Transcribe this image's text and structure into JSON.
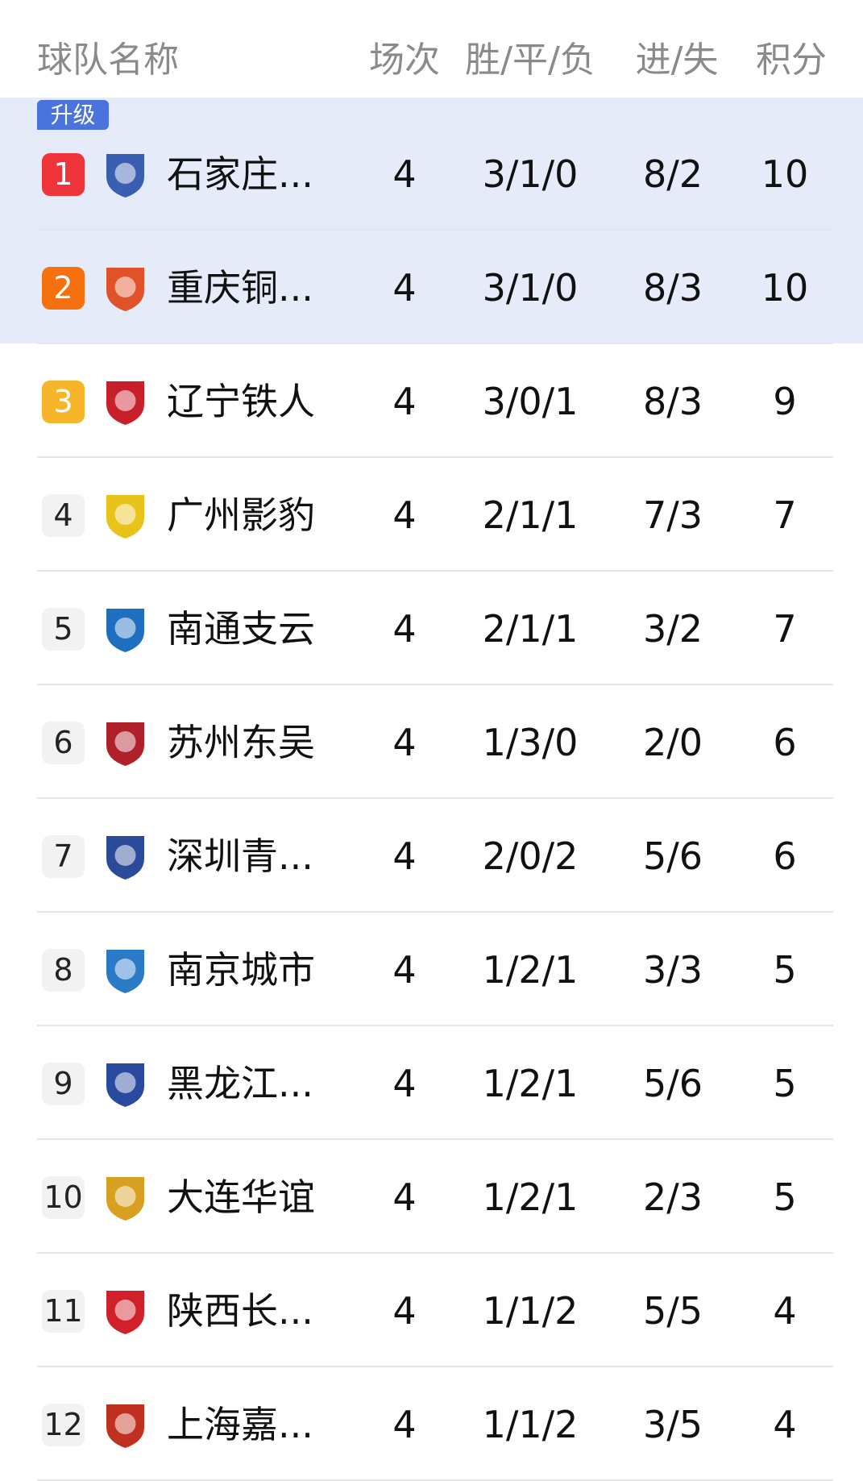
{
  "header": {
    "team": "球队名称",
    "played": "场次",
    "wdl": "胜/平/负",
    "goals": "进/失",
    "points": "积分"
  },
  "promotion_label": "升级",
  "colors": {
    "rank1": "#f0353a",
    "rank2": "#f5700f",
    "rank3": "#f7b52a",
    "promo_bg": "#e5ebf8",
    "promo_tag": "#4a73de"
  },
  "rows": [
    {
      "rank": "1",
      "name": "石家庄...",
      "played": "4",
      "wdl": "3/1/0",
      "goals": "8/2",
      "points": "10",
      "logo": "shijiazhuang-crest",
      "logo_color": "#3a5fb0"
    },
    {
      "rank": "2",
      "name": "重庆铜...",
      "played": "4",
      "wdl": "3/1/0",
      "goals": "8/3",
      "points": "10",
      "logo": "chongqing-crest",
      "logo_color": "#e0522a"
    },
    {
      "rank": "3",
      "name": "辽宁铁人",
      "played": "4",
      "wdl": "3/0/1",
      "goals": "8/3",
      "points": "9",
      "logo": "liaoning-tieren-crest",
      "logo_color": "#c8202a"
    },
    {
      "rank": "4",
      "name": "广州影豹",
      "played": "4",
      "wdl": "2/1/1",
      "goals": "7/3",
      "points": "7",
      "logo": "guangzhou-crest",
      "logo_color": "#e8c31a"
    },
    {
      "rank": "5",
      "name": "南通支云",
      "played": "4",
      "wdl": "2/1/1",
      "goals": "3/2",
      "points": "7",
      "logo": "nantong-crest",
      "logo_color": "#1f6fc0"
    },
    {
      "rank": "6",
      "name": "苏州东吴",
      "played": "4",
      "wdl": "1/3/0",
      "goals": "2/0",
      "points": "6",
      "logo": "suzhou-crest",
      "logo_color": "#b0202a"
    },
    {
      "rank": "7",
      "name": "深圳青...",
      "played": "4",
      "wdl": "2/0/2",
      "goals": "5/6",
      "points": "6",
      "logo": "shenzhen-crest",
      "logo_color": "#2a4a9a"
    },
    {
      "rank": "8",
      "name": "南京城市",
      "played": "4",
      "wdl": "1/2/1",
      "goals": "3/3",
      "points": "5",
      "logo": "nanjing-crest",
      "logo_color": "#2a7ac8"
    },
    {
      "rank": "9",
      "name": "黑龙江...",
      "played": "4",
      "wdl": "1/2/1",
      "goals": "5/6",
      "points": "5",
      "logo": "heilongjiang-crest",
      "logo_color": "#2a4aa0"
    },
    {
      "rank": "10",
      "name": "大连华谊",
      "played": "4",
      "wdl": "1/2/1",
      "goals": "2/3",
      "points": "5",
      "logo": "dalian-crest",
      "logo_color": "#d8a020"
    },
    {
      "rank": "11",
      "name": "陕西长...",
      "played": "4",
      "wdl": "1/1/2",
      "goals": "5/5",
      "points": "4",
      "logo": "shaanxi-union-crest",
      "logo_color": "#d0202a"
    },
    {
      "rank": "12",
      "name": "上海嘉...",
      "played": "4",
      "wdl": "1/1/2",
      "goals": "3/5",
      "points": "4",
      "logo": "shanghai-jiading-crest",
      "logo_color": "#c03020"
    }
  ]
}
